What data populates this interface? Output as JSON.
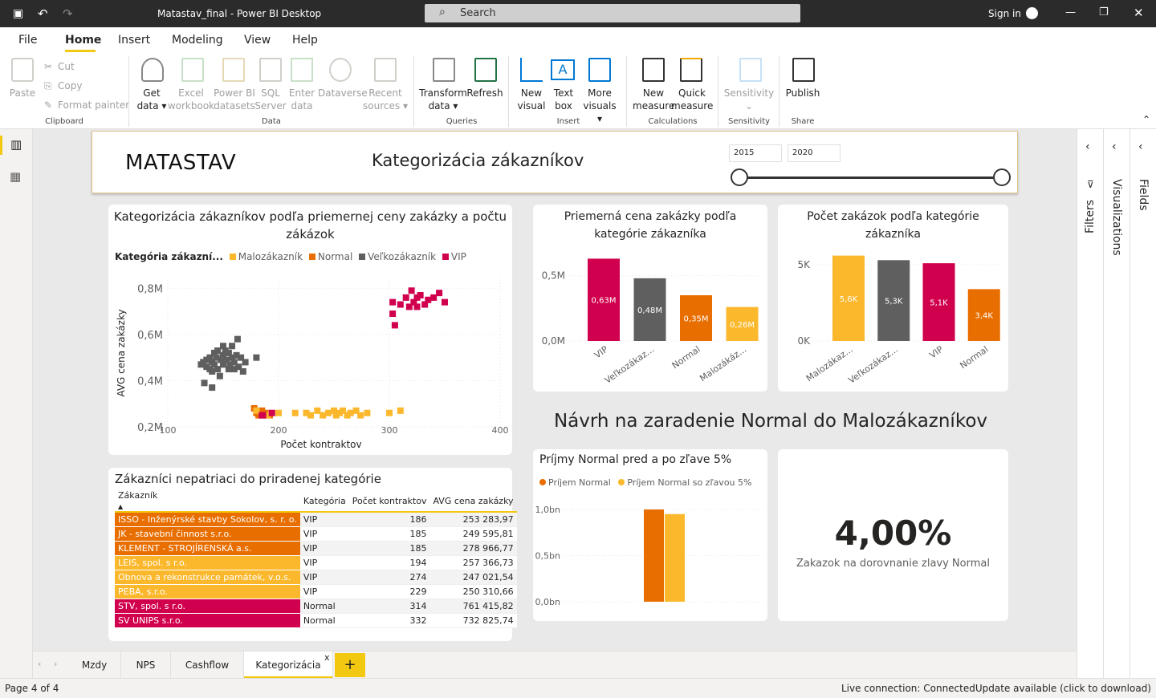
{
  "titlebar": {
    "doc_title": "Matastav_final - Power BI Desktop",
    "search_label": "Search",
    "sign_in": "Sign in"
  },
  "menu": [
    "File",
    "Home",
    "Insert",
    "Modeling",
    "View",
    "Help"
  ],
  "ribbon": {
    "paste": "Paste",
    "cut": "Cut",
    "copy": "Copy",
    "format_painter": "Format painter",
    "clipboard": "Clipboard",
    "get_data": [
      "Get",
      "data"
    ],
    "excel": [
      "Excel",
      "workbook"
    ],
    "pbi_datasets": [
      "Power BI",
      "datasets"
    ],
    "sql": [
      "SQL",
      "Server"
    ],
    "enter_data": [
      "Enter",
      "data"
    ],
    "dataverse": "Dataverse",
    "recent": [
      "Recent",
      "sources"
    ],
    "data_group": "Data",
    "transform": [
      "Transform",
      "data"
    ],
    "refresh": "Refresh",
    "queries_group": "Queries",
    "new_visual": [
      "New",
      "visual"
    ],
    "text_box": [
      "Text",
      "box"
    ],
    "more_visuals": [
      "More",
      "visuals"
    ],
    "insert_group": "Insert",
    "new_measure": [
      "New",
      "measure"
    ],
    "quick_measure": [
      "Quick",
      "measure"
    ],
    "calc_group": "Calculations",
    "sensitivity": "Sensitivity",
    "sens_group": "Sensitivity",
    "publish": "Publish",
    "share_group": "Share"
  },
  "header": {
    "brand": "MATASTAV",
    "title": "Kategorizácia zákazníkov",
    "year_from": "2015",
    "year_to": "2020",
    "slider_from": 0,
    "slider_to": 1
  },
  "scatter": {
    "title": "Kategorizácia zákazníkov podľa priemernej ceny zakázky a počtu zákázok",
    "legend_title": "Kategória zákazní...",
    "legend": [
      "Malozákazník",
      "Normal",
      "Veľkozákazník",
      "VIP"
    ],
    "yticks": [
      "0,8M",
      "0,6M",
      "0,4M",
      "0,2M"
    ],
    "xticks": [
      "100",
      "200",
      "300",
      "400"
    ],
    "ylabel": "AVG cena zakázky",
    "xlabel": "Počet kontraktov"
  },
  "bar1": {
    "title": "Priemerná cena zakázky podľa kategórie zákazníka",
    "yticks": [
      "0,5M",
      "0,0M"
    ],
    "cats": [
      "VIP",
      "Veľkozákaz...",
      "Normal",
      "Malozákáz..."
    ],
    "labels": [
      "0,63M",
      "0,48M",
      "0,35M",
      "0,26M"
    ]
  },
  "bar2": {
    "title": "Počet zakázok podľa kategórie zákazníka",
    "yticks": [
      "5K",
      "0K"
    ],
    "cats": [
      "Malozákaz...",
      "Veľkozákaz...",
      "VIP",
      "Normal"
    ],
    "labels": [
      "5,6K",
      "5,3K",
      "5,1K",
      "3,4K"
    ]
  },
  "proposal": "Návrh na zaradenie Normal do Malozákazníkov",
  "bar3": {
    "title": "Príjmy Normal pred a po zľave 5%",
    "legend": [
      "Príjem Normal",
      "Príjem Normal so zľavou 5%"
    ],
    "yticks": [
      "1,0bn",
      "0,5bn",
      "0,0bn"
    ]
  },
  "kpi": {
    "value": "4,00%",
    "label": "Zakazok na dorovnanie zlavy Normal"
  },
  "table": {
    "title": "Zákazníci nepatriaci do priradenej kategórie",
    "headers": [
      "Zákazník",
      "Kategória",
      "Počet kontraktov",
      "AVG cena zakázky"
    ],
    "rows": [
      [
        "ISSO - Inženýrské stavby Sokolov, s. r. o.",
        "VIP",
        "186",
        "253 283,97"
      ],
      [
        "JK - stavební činnost s.r.o.",
        "VIP",
        "185",
        "249 595,81"
      ],
      [
        "KLEMENT - STROJÍRENSKÁ a.s.",
        "VIP",
        "185",
        "278 966,77"
      ],
      [
        "LEIS, spol. s r.o.",
        "VIP",
        "194",
        "257 366,73"
      ],
      [
        "Obnova a rekonstrukce památek, v.o.s.",
        "VIP",
        "274",
        "247 021,54"
      ],
      [
        "PEBA, s.r.o.",
        "VIP",
        "229",
        "250 310,66"
      ],
      [
        "STV, spol. s r.o.",
        "Normal",
        "314",
        "761 415,82"
      ],
      [
        "SV UNIPS s.r.o.",
        "Normal",
        "332",
        "732 825,74"
      ]
    ],
    "row_colors": [
      "#e86e00",
      "#e86e00",
      "#e86e00",
      "#fbb82c",
      "#fbb82c",
      "#fbb82c",
      "#d1004e",
      "#d1004e"
    ]
  },
  "panes": {
    "filters": "Filters",
    "visualizations": "Visualizations",
    "fields": "Fields"
  },
  "tabs": [
    "Mzdy",
    "NPS",
    "Cashflow",
    "Kategorizácia"
  ],
  "status": {
    "page": "Page 4 of 4",
    "right": "Live connection: ConnectedUpdate available (click to download)"
  },
  "colors": {
    "malo": "#fbb82c",
    "normal": "#e86e00",
    "velko": "#5f5f5f",
    "vip": "#d1004e"
  },
  "chart_data": [
    {
      "type": "scatter",
      "title": "Kategorizácia zákazníkov podľa priemernej ceny zakázky a počtu zákázok",
      "xlabel": "Počet kontraktov",
      "ylabel": "AVG cena zakázky",
      "xlim": [
        100,
        400
      ],
      "ylim": [
        0.2,
        0.85
      ],
      "series": [
        {
          "name": "Veľkozákazník",
          "points": [
            [
              130,
              0.47
            ],
            [
              132,
              0.48
            ],
            [
              135,
              0.49
            ],
            [
              135,
              0.46
            ],
            [
              138,
              0.5
            ],
            [
              138,
              0.45
            ],
            [
              140,
              0.48
            ],
            [
              140,
              0.44
            ],
            [
              142,
              0.52
            ],
            [
              142,
              0.47
            ],
            [
              144,
              0.5
            ],
            [
              145,
              0.53
            ],
            [
              145,
              0.45
            ],
            [
              147,
              0.42
            ],
            [
              148,
              0.49
            ],
            [
              150,
              0.55
            ],
            [
              150,
              0.51
            ],
            [
              150,
              0.47
            ],
            [
              152,
              0.53
            ],
            [
              153,
              0.49
            ],
            [
              155,
              0.45
            ],
            [
              155,
              0.52
            ],
            [
              156,
              0.47
            ],
            [
              158,
              0.55
            ],
            [
              158,
              0.5
            ],
            [
              160,
              0.48
            ],
            [
              160,
              0.45
            ],
            [
              162,
              0.51
            ],
            [
              163,
              0.58
            ],
            [
              164,
              0.46
            ],
            [
              166,
              0.5
            ],
            [
              168,
              0.44
            ],
            [
              170,
              0.48
            ],
            [
              180,
              0.5
            ],
            [
              133,
              0.39
            ],
            [
              140,
              0.37
            ]
          ]
        },
        {
          "name": "Normal",
          "points": [
            [
              178,
              0.28
            ],
            [
              180,
              0.26
            ],
            [
              182,
              0.25
            ],
            [
              185,
              0.27
            ],
            [
              188,
              0.26
            ],
            [
              192,
              0.25
            ]
          ]
        },
        {
          "name": "Malozákazník",
          "points": [
            [
              180,
              0.27
            ],
            [
              190,
              0.25
            ],
            [
              200,
              0.26
            ],
            [
              215,
              0.26
            ],
            [
              225,
              0.26
            ],
            [
              235,
              0.27
            ],
            [
              240,
              0.25
            ],
            [
              245,
              0.26
            ],
            [
              250,
              0.27
            ],
            [
              252,
              0.25
            ],
            [
              255,
              0.26
            ],
            [
              258,
              0.27
            ],
            [
              262,
              0.25
            ],
            [
              265,
              0.26
            ],
            [
              270,
              0.27
            ],
            [
              274,
              0.25
            ],
            [
              280,
              0.26
            ],
            [
              300,
              0.26
            ],
            [
              310,
              0.27
            ],
            [
              229,
              0.25
            ]
          ]
        },
        {
          "name": "VIP",
          "points": [
            [
              186,
              0.25
            ],
            [
              185,
              0.25
            ],
            [
              194,
              0.26
            ],
            [
              303,
              0.74
            ],
            [
              303,
              0.69
            ],
            [
              305,
              0.64
            ],
            [
              310,
              0.73
            ],
            [
              315,
              0.76
            ],
            [
              318,
              0.72
            ],
            [
              320,
              0.79
            ],
            [
              322,
              0.74
            ],
            [
              325,
              0.72
            ],
            [
              325,
              0.76
            ],
            [
              328,
              0.77
            ],
            [
              332,
              0.73
            ],
            [
              335,
              0.75
            ],
            [
              340,
              0.76
            ],
            [
              345,
              0.78
            ],
            [
              350,
              0.74
            ]
          ]
        }
      ]
    },
    {
      "type": "bar",
      "title": "Priemerná cena zakázky podľa kategórie zákazníka",
      "categories": [
        "VIP",
        "Veľkozákaz...",
        "Normal",
        "Malozákáz..."
      ],
      "values": [
        0.63,
        0.48,
        0.35,
        0.26
      ],
      "ylim": [
        0,
        0.7
      ]
    },
    {
      "type": "bar",
      "title": "Počet zakázok podľa kategórie zákazníka",
      "categories": [
        "Malozákaz...",
        "Veľkozákaz...",
        "VIP",
        "Normal"
      ],
      "values": [
        5.6,
        5.3,
        5.1,
        3.4
      ],
      "ylim": [
        0,
        6
      ]
    },
    {
      "type": "bar",
      "title": "Príjmy Normal pred a po zľave 5%",
      "series": [
        {
          "name": "Príjem Normal",
          "values": [
            1.0
          ]
        },
        {
          "name": "Príjem Normal so zľavou 5%",
          "values": [
            0.95
          ]
        }
      ],
      "ylim": [
        0,
        1.0
      ]
    }
  ]
}
